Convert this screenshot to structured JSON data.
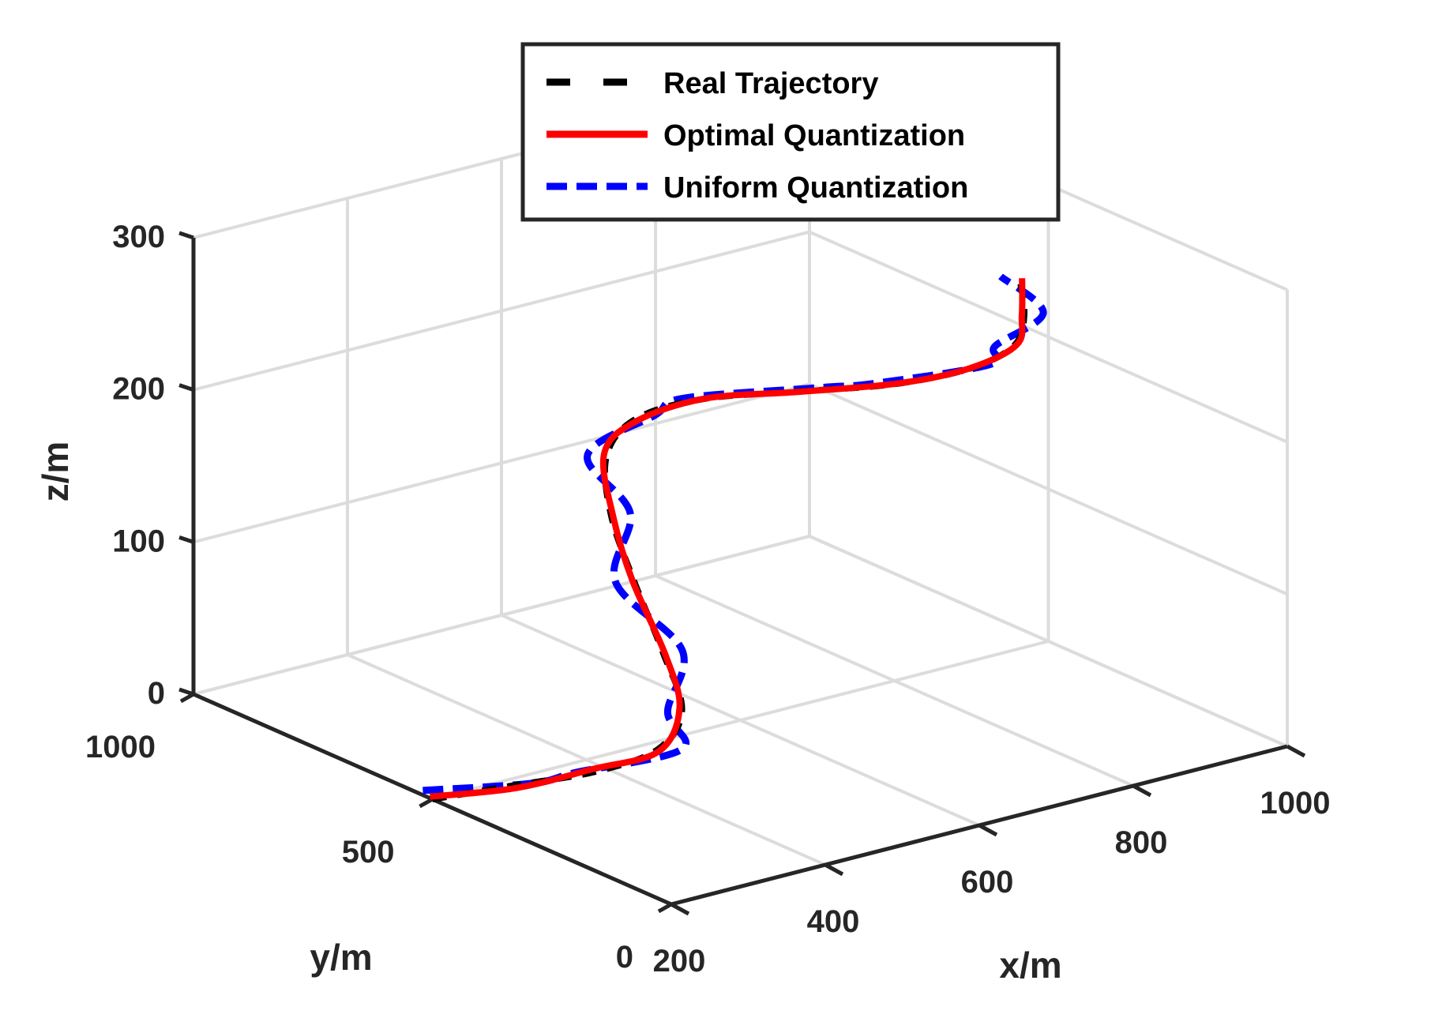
{
  "chart_data": {
    "type": "line",
    "projection": "3d",
    "title": "",
    "xlabel": "x/m",
    "ylabel": "y/m",
    "zlabel": "z/m",
    "xlim": [
      200,
      1000
    ],
    "ylim": [
      0,
      1000
    ],
    "zlim": [
      0,
      300
    ],
    "x_ticks": [
      "200",
      "400",
      "600",
      "800",
      "1000"
    ],
    "y_ticks": [
      "0",
      "500",
      "1000"
    ],
    "z_ticks": [
      "0",
      "100",
      "200",
      "300"
    ],
    "grid": true,
    "legend_position": "top-center",
    "series": [
      {
        "name": "Real Trajectory",
        "color": "#000000",
        "style": "dashed",
        "x": [
          200,
          250,
          300,
          350,
          400,
          450,
          500,
          550,
          600,
          650,
          700,
          750,
          800,
          850,
          900,
          950,
          1000
        ],
        "y": [
          500,
          410,
          320,
          270,
          300,
          420,
          560,
          690,
          780,
          800,
          740,
          620,
          500,
          420,
          410,
          470,
          560
        ],
        "z": [
          0,
          15,
          30,
          45,
          60,
          75,
          95,
          115,
          135,
          150,
          165,
          180,
          195,
          210,
          220,
          225,
          230
        ]
      },
      {
        "name": "Optimal Quantization",
        "color": "#ff0000",
        "style": "solid",
        "x": [
          200,
          250,
          300,
          350,
          400,
          450,
          500,
          550,
          600,
          650,
          700,
          750,
          800,
          850,
          900,
          950,
          1000
        ],
        "y": [
          505,
          405,
          325,
          268,
          305,
          415,
          565,
          685,
          785,
          798,
          735,
          625,
          495,
          425,
          405,
          475,
          555
        ],
        "z": [
          1,
          14,
          31,
          44,
          61,
          74,
          96,
          114,
          136,
          149,
          166,
          179,
          196,
          209,
          221,
          224,
          231
        ]
      },
      {
        "name": "Uniform Quantization",
        "color": "#0000ff",
        "style": "dashed",
        "x": [
          200,
          250,
          300,
          350,
          400,
          450,
          500,
          550,
          600,
          650,
          700,
          750,
          800,
          850,
          900,
          950,
          1000
        ],
        "y": [
          520,
          370,
          360,
          220,
          330,
          380,
          600,
          650,
          820,
          760,
          780,
          580,
          540,
          380,
          450,
          430,
          600
        ],
        "z": [
          3,
          22,
          24,
          52,
          55,
          82,
          90,
          122,
          130,
          158,
          160,
          188,
          190,
          218,
          214,
          232,
          226
        ]
      }
    ]
  }
}
